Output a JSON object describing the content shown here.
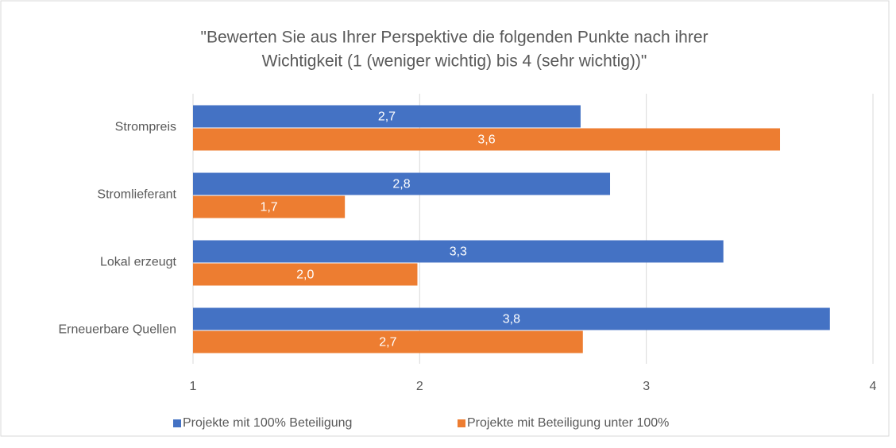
{
  "chart_data": {
    "type": "hbar",
    "title": [
      "\"Bewerten Sie aus Ihrer Perspektive die folgenden Punkte nach ihrer",
      "Wichtigkeit (1 (weniger wichtig) bis 4 (sehr wichtig))\""
    ],
    "categories": [
      "Strompreis",
      "Stromlieferant",
      "Lokal erzeugt",
      "Erneuerbare Quellen"
    ],
    "series": [
      {
        "name": "Projekte mit 100% Beteiligung",
        "color": "#4472c4",
        "values": [
          2.71,
          2.84,
          3.34,
          3.81
        ],
        "value_labels": [
          "2,7",
          "2,8",
          "3,3",
          "3,8"
        ]
      },
      {
        "name": "Projekte mit Beteiligung  unter 100%",
        "color": "#ed7d31",
        "values": [
          3.59,
          1.67,
          1.99,
          2.72
        ],
        "value_labels": [
          "3,6",
          "1,7",
          "2,0",
          "2,7"
        ]
      }
    ],
    "xlim": [
      1,
      4
    ],
    "xticks": [
      1,
      2,
      3,
      4
    ],
    "grid": true,
    "legend": "bottom"
  }
}
